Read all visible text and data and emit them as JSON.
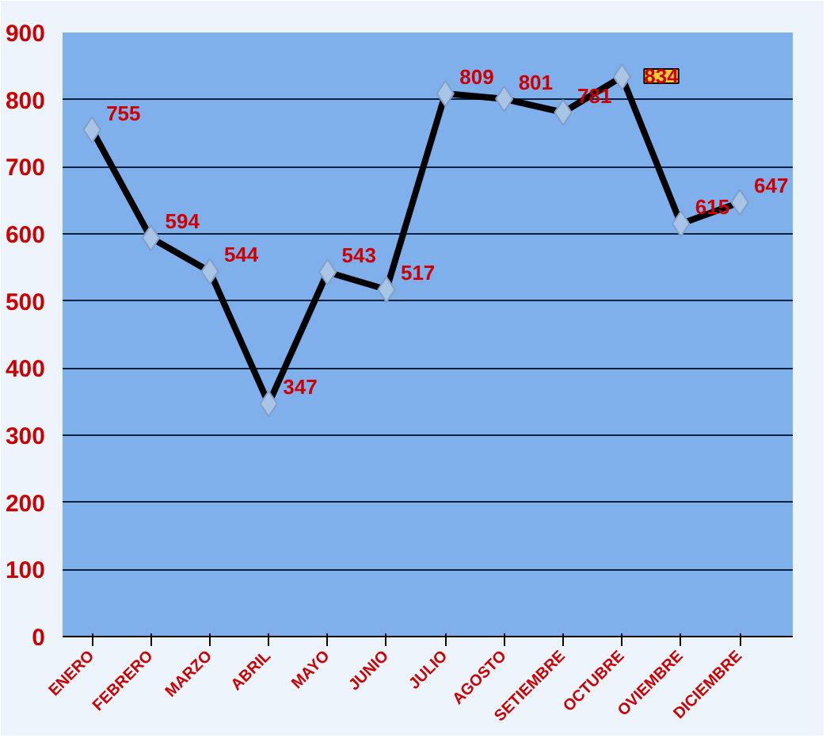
{
  "chart_data": {
    "type": "line",
    "categories": [
      "ENERO",
      "FEBRERO",
      "MARZO",
      "ABRIL",
      "MAYO",
      "JUNIO",
      "JULIO",
      "AGOSTO",
      "SETIEMBRE",
      "OCTUBRE",
      "OVIEMBRE",
      "DICIEMBRE"
    ],
    "series": [
      {
        "color": "#000000",
        "values": [
          755,
          594,
          544,
          347,
          543,
          517,
          809,
          801,
          781,
          834,
          615,
          647
        ]
      }
    ],
    "ylim": [
      0,
      900
    ],
    "yticks": [
      0,
      100,
      200,
      300,
      400,
      500,
      600,
      700,
      800,
      900
    ],
    "grid": "y",
    "marker": "diamond",
    "line_style": "solid",
    "data_labels": true
  }
}
